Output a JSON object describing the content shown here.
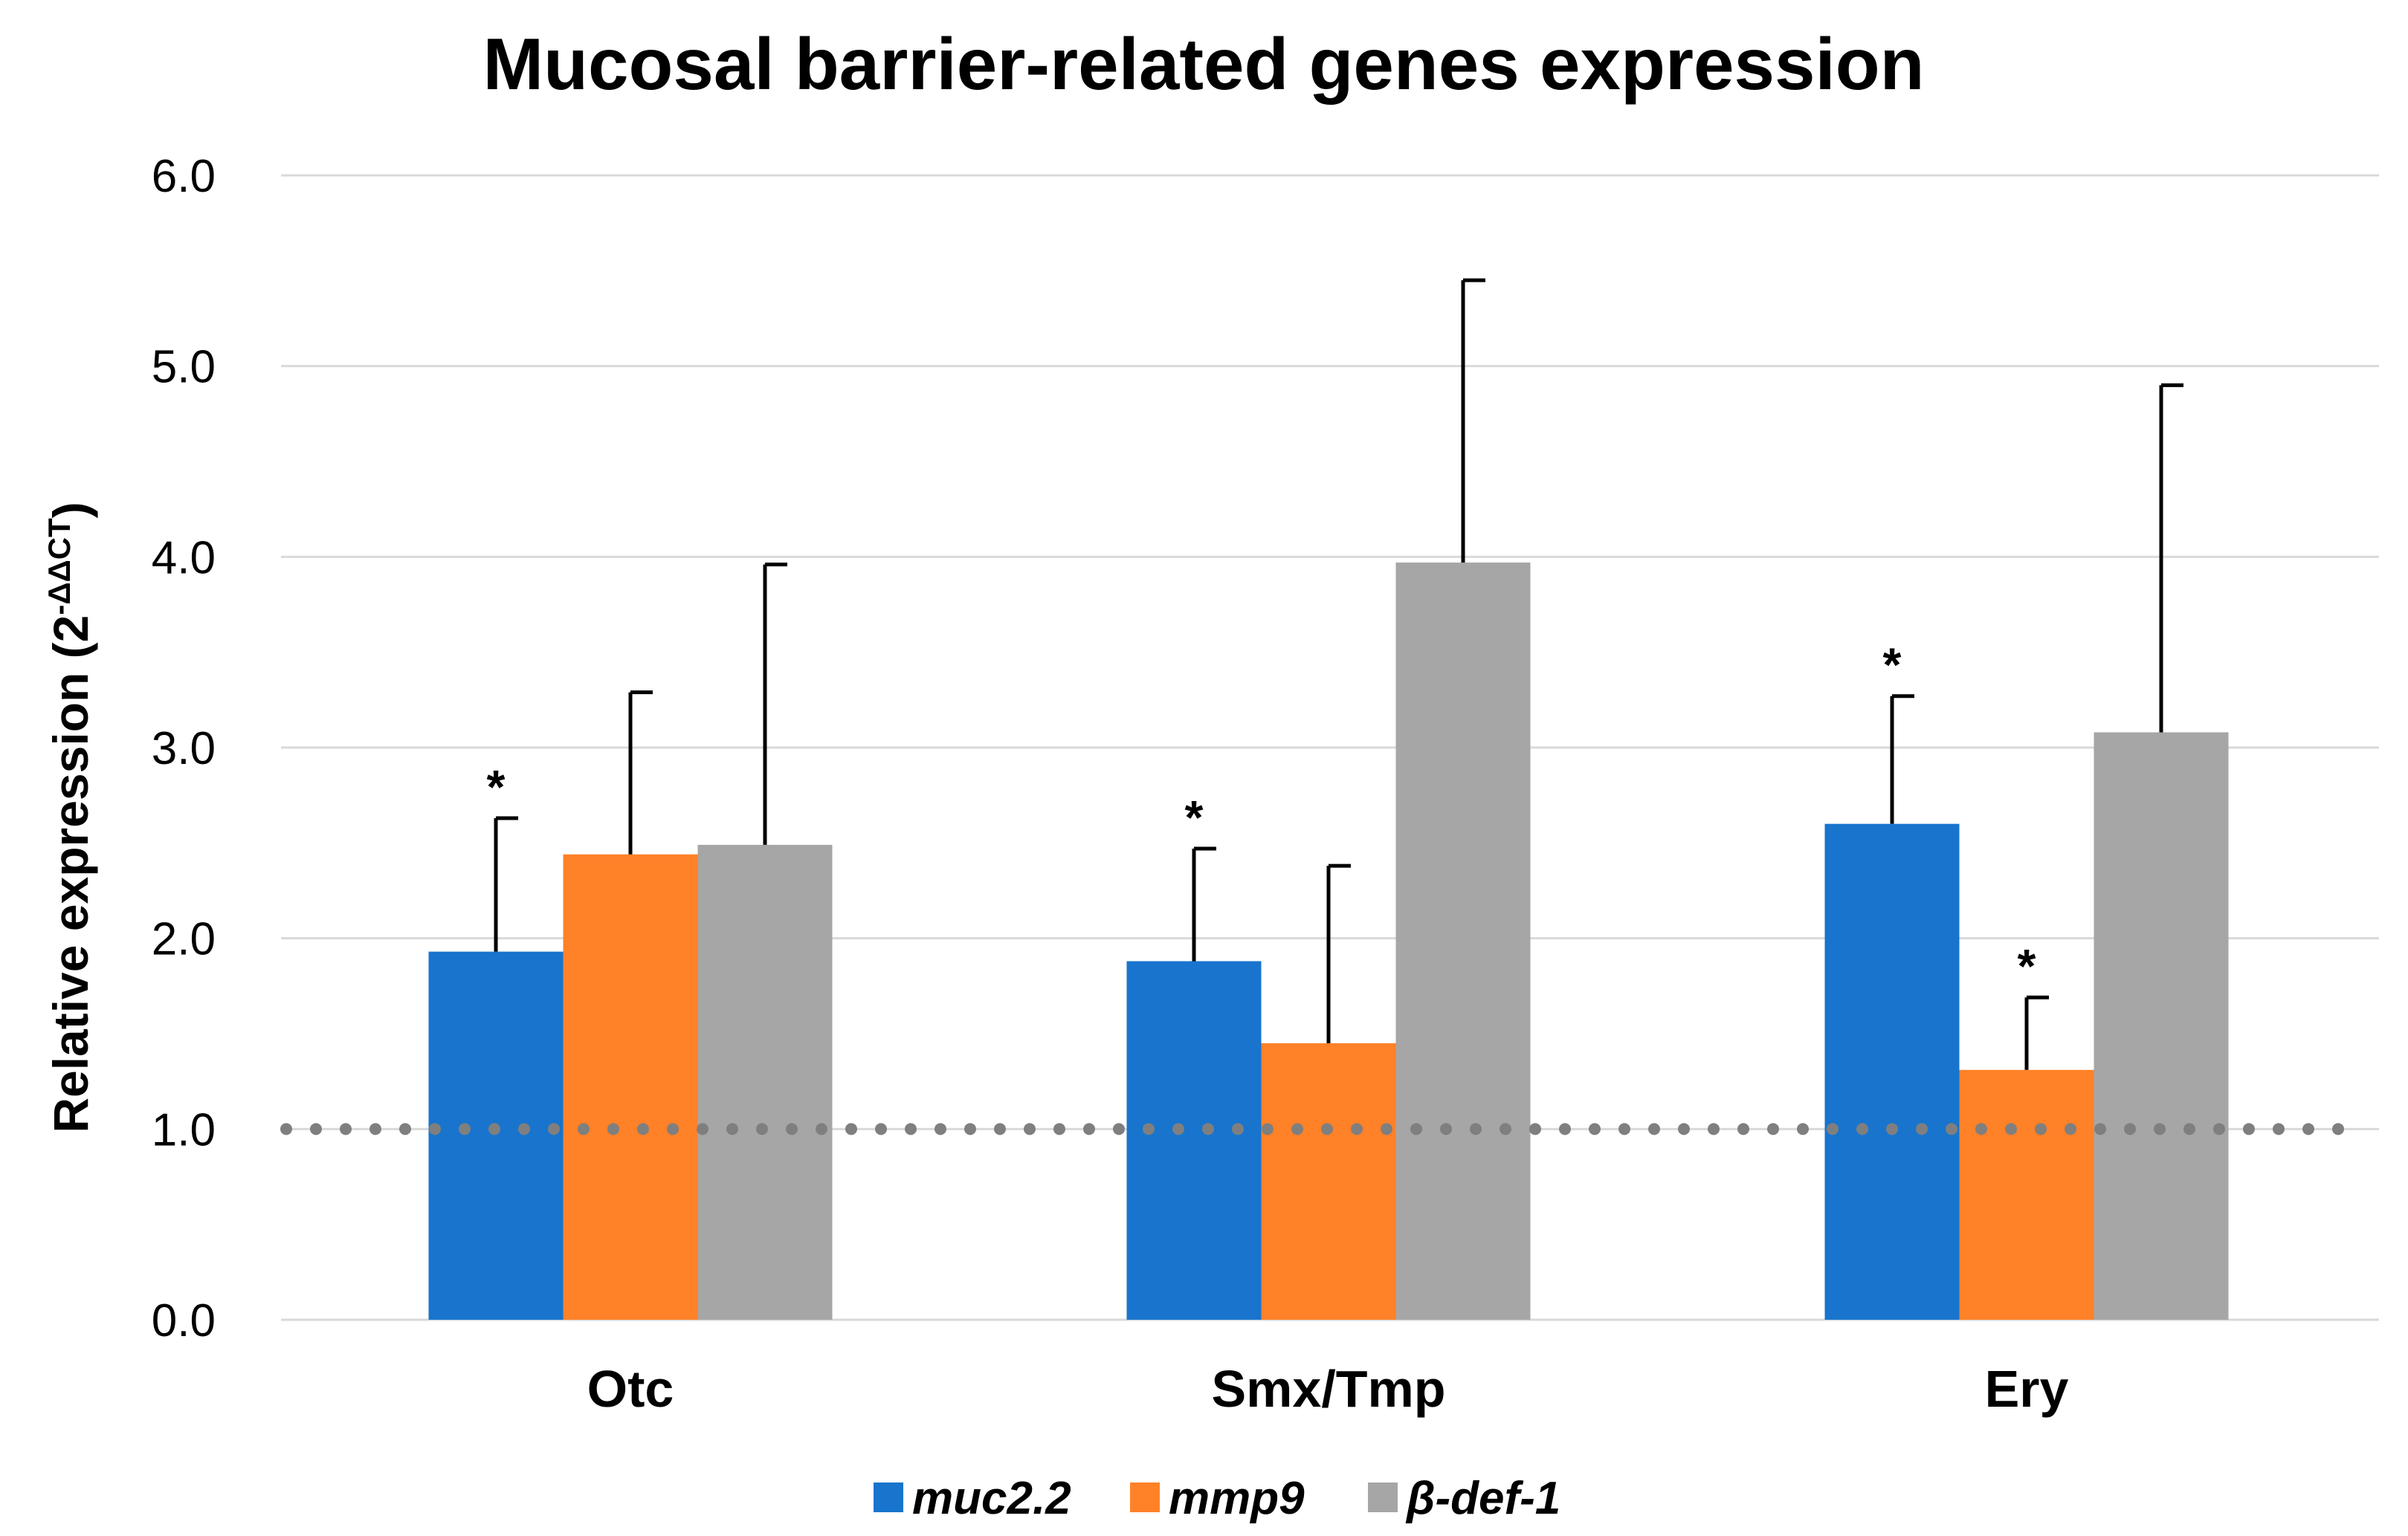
{
  "chart_data": {
    "type": "bar",
    "title": "Mucosal barrier-related genes expression",
    "ylabel": "Relative expression (2",
    "ylabel_superscript": "-ΔΔCT",
    "ylabel_close": ")",
    "xlabel": "",
    "ylim": [
      0,
      6
    ],
    "yticks": [
      0,
      1,
      2,
      3,
      4,
      5,
      6
    ],
    "ytick_labels": [
      "0.0",
      "1.0",
      "2.0",
      "3.0",
      "4.0",
      "5.0",
      "6.0"
    ],
    "grid": true,
    "reference_line": 1.0,
    "categories": [
      "Otc",
      "Smx/Tmp",
      "Ery"
    ],
    "series": [
      {
        "name": "muc2.2",
        "color": "#1874CD",
        "values": [
          1.93,
          1.88,
          2.6
        ],
        "errors": [
          0.7,
          0.59,
          0.67
        ],
        "significance": [
          "*",
          "*",
          "*"
        ]
      },
      {
        "name": "mmp9",
        "color": "#FF8128",
        "values": [
          2.44,
          1.45,
          1.31
        ],
        "errors": [
          0.85,
          0.93,
          0.38
        ],
        "significance": [
          "",
          "",
          "*"
        ]
      },
      {
        "name": "β-def-1",
        "color": "#A6A6A6",
        "values": [
          2.49,
          3.97,
          3.08
        ],
        "errors": [
          1.47,
          1.48,
          1.82
        ],
        "significance": [
          "",
          "",
          ""
        ]
      }
    ],
    "legend_position": "bottom-center"
  }
}
